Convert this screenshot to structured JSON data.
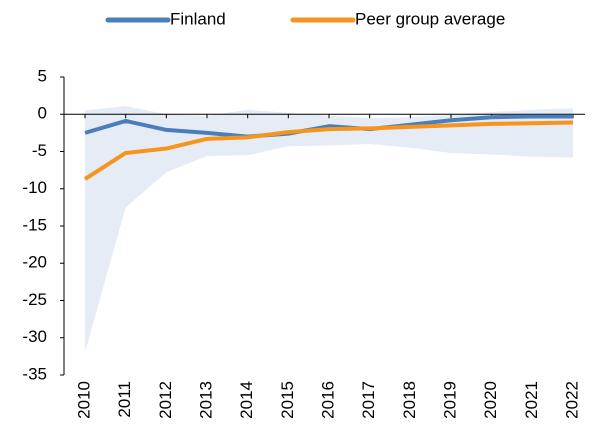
{
  "chart_data": {
    "type": "line",
    "categories": [
      "2010",
      "2011",
      "2012",
      "2013",
      "2014",
      "2015",
      "2016",
      "2017",
      "2018",
      "2019",
      "2020",
      "2021",
      "2022"
    ],
    "series": [
      {
        "name": "Finland",
        "color": "#4a7ebb",
        "values": [
          -2.5,
          -0.9,
          -2.1,
          -2.5,
          -3.0,
          -2.6,
          -1.6,
          -2.0,
          -1.4,
          -0.8,
          -0.4,
          -0.3,
          -0.3
        ]
      },
      {
        "name": "Peer group average",
        "color": "#f7941d",
        "values": [
          -8.7,
          -5.2,
          -4.6,
          -3.3,
          -3.1,
          -2.4,
          -2.0,
          -1.9,
          -1.7,
          -1.5,
          -1.3,
          -1.2,
          -1.1
        ]
      }
    ],
    "band": {
      "color": "#e6ecf5",
      "upper": [
        0.5,
        1.1,
        0.0,
        -0.2,
        0.6,
        0.2,
        -0.2,
        -0.5,
        -0.4,
        -0.1,
        0.3,
        0.6,
        0.8
      ],
      "lower": [
        -32,
        -12.5,
        -7.8,
        -5.6,
        -5.5,
        -4.3,
        -4.2,
        -4.0,
        -4.5,
        -5.2,
        -5.4,
        -5.7,
        -5.8
      ]
    },
    "ylim": [
      -35,
      5
    ],
    "yticks": [
      -35,
      -30,
      -25,
      -20,
      -15,
      -10,
      -5,
      0,
      5
    ],
    "legend": "top"
  }
}
